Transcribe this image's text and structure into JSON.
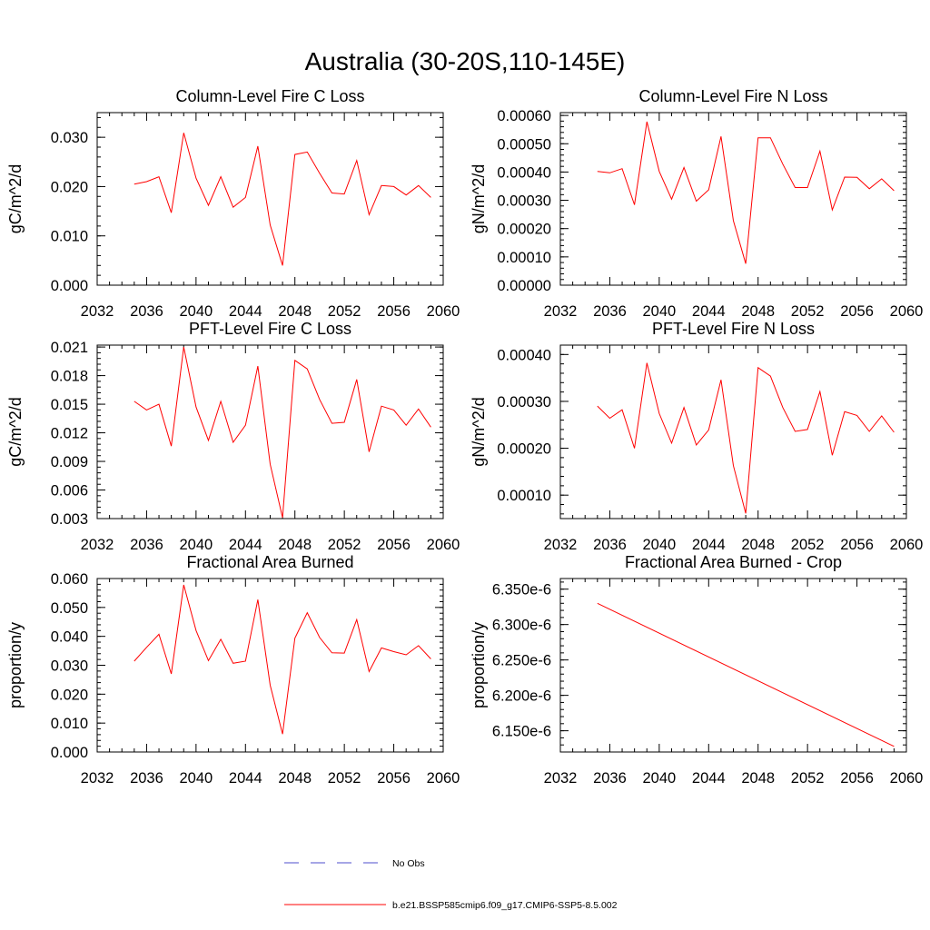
{
  "figure": {
    "title": "Australia (30-20S,110-145E)"
  },
  "chart_data": [
    {
      "type": "line",
      "title": "Column-Level Fire C Loss",
      "ylabel": "gC/m^2/d",
      "xlim": [
        2032,
        2060
      ],
      "ylim": [
        0.0,
        0.035
      ],
      "x_ticks": [
        "2032",
        "2036",
        "2040",
        "2044",
        "2048",
        "2052",
        "2056",
        "2060"
      ],
      "y_ticks": [
        "0.000",
        "0.010",
        "0.020",
        "0.030"
      ],
      "y_tick_values": [
        0.0,
        0.01,
        0.02,
        0.03
      ],
      "x": [
        2035,
        2036,
        2037,
        2038,
        2039,
        2040,
        2041,
        2042,
        2043,
        2044,
        2045,
        2046,
        2047,
        2048,
        2049,
        2050,
        2051,
        2052,
        2053,
        2054,
        2055,
        2056,
        2057,
        2058,
        2059
      ],
      "series": [
        {
          "name": "b.e21.BSSP585cmip6.f09_g17.CMIP6-SSP5-8.5.002",
          "color": "#ff0000",
          "values": [
            0.0205,
            0.021,
            0.022,
            0.0147,
            0.0309,
            0.0217,
            0.0162,
            0.022,
            0.0158,
            0.0178,
            0.0282,
            0.0122,
            0.004,
            0.0265,
            0.027,
            0.0227,
            0.0187,
            0.0185,
            0.0253,
            0.0143,
            0.0202,
            0.02,
            0.0183,
            0.0202,
            0.0178
          ]
        }
      ]
    },
    {
      "type": "line",
      "title": "Column-Level Fire N Loss",
      "ylabel": "gN/m^2/d",
      "xlim": [
        2032,
        2060
      ],
      "ylim": [
        0.0,
        0.00061
      ],
      "x_ticks": [
        "2032",
        "2036",
        "2040",
        "2044",
        "2048",
        "2052",
        "2056",
        "2060"
      ],
      "y_ticks": [
        "0.00000",
        "0.00010",
        "0.00020",
        "0.00030",
        "0.00040",
        "0.00050",
        "0.00060"
      ],
      "y_tick_values": [
        0.0,
        0.0001,
        0.0002,
        0.0003,
        0.0004,
        0.0005,
        0.0006
      ],
      "x": [
        2035,
        2036,
        2037,
        2038,
        2039,
        2040,
        2041,
        2042,
        2043,
        2044,
        2045,
        2046,
        2047,
        2048,
        2049,
        2050,
        2051,
        2052,
        2053,
        2054,
        2055,
        2056,
        2057,
        2058,
        2059
      ],
      "series": [
        {
          "name": "b.e21.BSSP585cmip6.f09_g17.CMIP6-SSP5-8.5.002",
          "color": "#ff0000",
          "values": [
            0.000402,
            0.000397,
            0.000412,
            0.000284,
            0.000578,
            0.000402,
            0.000304,
            0.000416,
            0.000297,
            0.000337,
            0.000526,
            0.000228,
            7.6e-05,
            0.000521,
            0.000521,
            0.000428,
            0.000345,
            0.000345,
            0.000474,
            0.000266,
            0.000382,
            0.000381,
            0.000341,
            0.000376,
            0.000334
          ]
        }
      ]
    },
    {
      "type": "line",
      "title": "PFT-Level Fire C Loss",
      "ylabel": "gC/m^2/d",
      "xlim": [
        2032,
        2060
      ],
      "ylim": [
        0.003,
        0.0212
      ],
      "x_ticks": [
        "2032",
        "2036",
        "2040",
        "2044",
        "2048",
        "2052",
        "2056",
        "2060"
      ],
      "y_ticks": [
        "0.003",
        "0.006",
        "0.009",
        "0.012",
        "0.015",
        "0.018",
        "0.021"
      ],
      "y_tick_values": [
        0.003,
        0.006,
        0.009,
        0.012,
        0.015,
        0.018,
        0.021
      ],
      "x": [
        2035,
        2036,
        2037,
        2038,
        2039,
        2040,
        2041,
        2042,
        2043,
        2044,
        2045,
        2046,
        2047,
        2048,
        2049,
        2050,
        2051,
        2052,
        2053,
        2054,
        2055,
        2056,
        2057,
        2058,
        2059
      ],
      "series": [
        {
          "name": "b.e21.BSSP585cmip6.f09_g17.CMIP6-SSP5-8.5.002",
          "color": "#ff0000",
          "values": [
            0.0153,
            0.0144,
            0.015,
            0.0106,
            0.021,
            0.0147,
            0.0112,
            0.0153,
            0.011,
            0.0128,
            0.019,
            0.0087,
            0.0031,
            0.0196,
            0.0187,
            0.0155,
            0.013,
            0.0131,
            0.0176,
            0.01,
            0.0148,
            0.0144,
            0.0128,
            0.0145,
            0.0126
          ]
        }
      ]
    },
    {
      "type": "line",
      "title": "PFT-Level Fire N Loss",
      "ylabel": "gN/m^2/d",
      "xlim": [
        2032,
        2060
      ],
      "ylim": [
        5e-05,
        0.00042
      ],
      "x_ticks": [
        "2032",
        "2036",
        "2040",
        "2044",
        "2048",
        "2052",
        "2056",
        "2060"
      ],
      "y_ticks": [
        "0.00010",
        "0.00020",
        "0.00030",
        "0.00040"
      ],
      "y_tick_values": [
        0.0001,
        0.0002,
        0.0003,
        0.0004
      ],
      "x": [
        2035,
        2036,
        2037,
        2038,
        2039,
        2040,
        2041,
        2042,
        2043,
        2044,
        2045,
        2046,
        2047,
        2048,
        2049,
        2050,
        2051,
        2052,
        2053,
        2054,
        2055,
        2056,
        2057,
        2058,
        2059
      ],
      "series": [
        {
          "name": "b.e21.BSSP585cmip6.f09_g17.CMIP6-SSP5-8.5.002",
          "color": "#ff0000",
          "values": [
            0.00029,
            0.000264,
            0.000282,
            0.0002,
            0.000382,
            0.000274,
            0.000211,
            0.000287,
            0.000207,
            0.000239,
            0.000346,
            0.000163,
            6.1e-05,
            0.000372,
            0.000354,
            0.000287,
            0.000236,
            0.00024,
            0.000321,
            0.000185,
            0.000278,
            0.00027,
            0.000236,
            0.000269,
            0.000234
          ]
        }
      ]
    },
    {
      "type": "line",
      "title": "Fractional Area Burned",
      "ylabel": "proportion/y",
      "xlim": [
        2032,
        2060
      ],
      "ylim": [
        0.0,
        0.06
      ],
      "x_ticks": [
        "2032",
        "2036",
        "2040",
        "2044",
        "2048",
        "2052",
        "2056",
        "2060"
      ],
      "y_ticks": [
        "0.000",
        "0.010",
        "0.020",
        "0.030",
        "0.040",
        "0.050",
        "0.060"
      ],
      "y_tick_values": [
        0.0,
        0.01,
        0.02,
        0.03,
        0.04,
        0.05,
        0.06
      ],
      "x": [
        2035,
        2036,
        2037,
        2038,
        2039,
        2040,
        2041,
        2042,
        2043,
        2044,
        2045,
        2046,
        2047,
        2048,
        2049,
        2050,
        2051,
        2052,
        2053,
        2054,
        2055,
        2056,
        2057,
        2058,
        2059
      ],
      "series": [
        {
          "name": "b.e21.BSSP585cmip6.f09_g17.CMIP6-SSP5-8.5.002",
          "color": "#ff0000",
          "values": [
            0.0314,
            0.0362,
            0.0407,
            0.027,
            0.0578,
            0.042,
            0.0316,
            0.039,
            0.0307,
            0.0314,
            0.0527,
            0.0231,
            0.0062,
            0.0394,
            0.0482,
            0.0396,
            0.0343,
            0.0342,
            0.0458,
            0.0278,
            0.036,
            0.0347,
            0.0336,
            0.0368,
            0.0322
          ]
        }
      ]
    },
    {
      "type": "line",
      "title": "Fractional Area Burned - Crop",
      "ylabel": "proportion/y",
      "xlim": [
        2032,
        2060
      ],
      "ylim": [
        6.12e-06,
        6.365e-06
      ],
      "x_ticks": [
        "2032",
        "2036",
        "2040",
        "2044",
        "2048",
        "2052",
        "2056",
        "2060"
      ],
      "y_ticks": [
        "6.150e-6",
        "6.200e-6",
        "6.250e-6",
        "6.300e-6",
        "6.350e-6"
      ],
      "y_tick_values": [
        6.15e-06,
        6.2e-06,
        6.25e-06,
        6.3e-06,
        6.35e-06
      ],
      "x": [
        2035,
        2059
      ],
      "series": [
        {
          "name": "b.e21.BSSP585cmip6.f09_g17.CMIP6-SSP5-8.5.002",
          "color": "#ff0000",
          "values": [
            6.33e-06,
            6.128e-06
          ]
        }
      ]
    }
  ],
  "legend": [
    {
      "label": "No Obs",
      "color": "#4d4dcc",
      "dashed": true
    },
    {
      "label": "b.e21.BSSP585cmip6.f09_g17.CMIP6-SSP5-8.5.002",
      "color": "#ff0000",
      "dashed": false
    }
  ]
}
